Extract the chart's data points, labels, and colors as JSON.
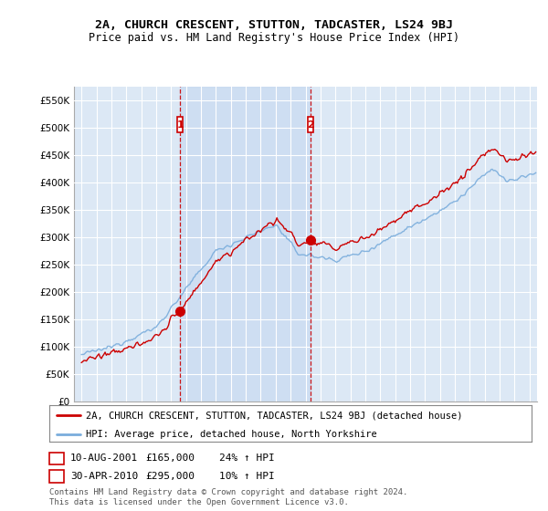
{
  "title": "2A, CHURCH CRESCENT, STUTTON, TADCASTER, LS24 9BJ",
  "subtitle": "Price paid vs. HM Land Registry's House Price Index (HPI)",
  "ylabel_ticks": [
    "£0",
    "£50K",
    "£100K",
    "£150K",
    "£200K",
    "£250K",
    "£300K",
    "£350K",
    "£400K",
    "£450K",
    "£500K",
    "£550K"
  ],
  "ytick_vals": [
    0,
    50000,
    100000,
    150000,
    200000,
    250000,
    300000,
    350000,
    400000,
    450000,
    500000,
    550000
  ],
  "ylim": [
    0,
    575000
  ],
  "xlim_start": 1994.5,
  "xlim_end": 2025.5,
  "sale1_x": 2001.6,
  "sale1_y": 165000,
  "sale1_label": "1",
  "sale2_x": 2010.33,
  "sale2_y": 295000,
  "sale2_label": "2",
  "legend_line1": "2A, CHURCH CRESCENT, STUTTON, TADCASTER, LS24 9BJ (detached house)",
  "legend_line2": "HPI: Average price, detached house, North Yorkshire",
  "footer1": "Contains HM Land Registry data © Crown copyright and database right 2024.",
  "footer2": "This data is licensed under the Open Government Licence v3.0.",
  "table_row1": [
    "1",
    "10-AUG-2001",
    "£165,000",
    "24% ↑ HPI"
  ],
  "table_row2": [
    "2",
    "30-APR-2010",
    "£295,000",
    "10% ↑ HPI"
  ],
  "hpi_color": "#7aaddc",
  "price_color": "#cc0000",
  "bg_color": "#ffffff",
  "plot_bg_color": "#dce8f5",
  "grid_color": "#ffffff",
  "shade_color": "#c5d8f0",
  "marker_vline_color": "#cc0000"
}
